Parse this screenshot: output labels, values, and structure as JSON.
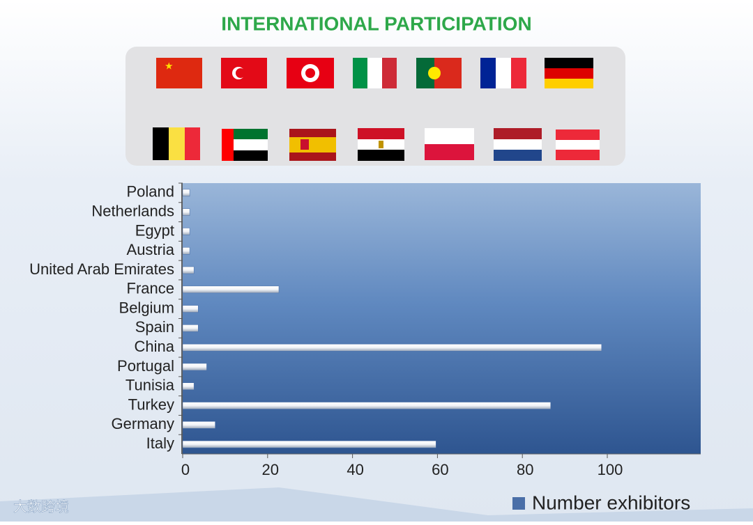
{
  "chart_data": {
    "type": "hbar",
    "title": "INTERNATIONAL PARTICIPATION",
    "categories": [
      "Poland",
      "Netherlands",
      "Egypt",
      "Austria",
      "United Arab Emirates",
      "France",
      "Belgium",
      "Spain",
      "China",
      "Portugal",
      "Tunisia",
      "Turkey",
      "Germany",
      "Italy"
    ],
    "series": [
      {
        "name": "Number exhibitors",
        "color": "#4a6fa8",
        "values": [
          1,
          1,
          1,
          1,
          2,
          22,
          3,
          3,
          98,
          5,
          2,
          86,
          7,
          59
        ]
      }
    ],
    "xlim": [
      0,
      122
    ],
    "xticks": [
      0,
      20,
      40,
      60,
      80,
      100
    ],
    "watermark": "大数跨境"
  }
}
